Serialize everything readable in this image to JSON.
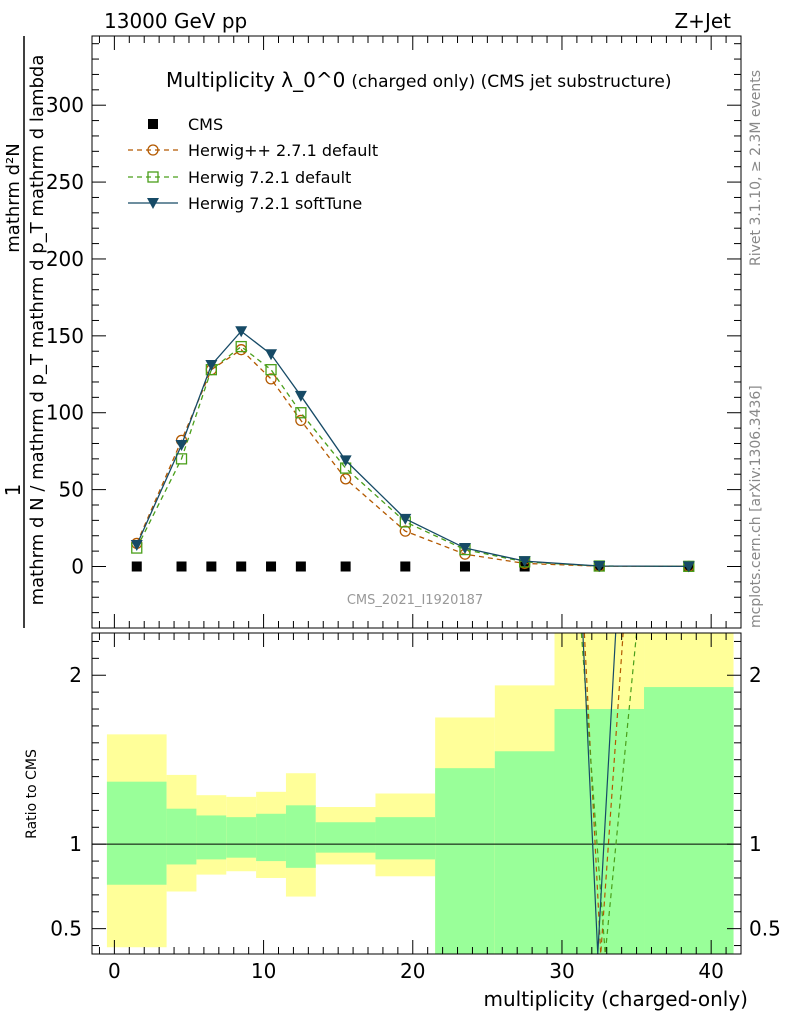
{
  "header": {
    "left": "13000 GeV pp",
    "right": "Z+Jet"
  },
  "side_labels": {
    "rivet": "Rivet 3.1.10, ≥ 2.3M events",
    "mcplots": "mcplots.cern.ch [arXiv:1306.3436]"
  },
  "chart_data": [
    {
      "type": "line",
      "title": "Multiplicity λ_0^0",
      "title_suffix": "(charged only) (CMS jet substructure)",
      "ylabel_top": "1",
      "ylabel_num": "mathrm d²N",
      "ylabel_den_main": "mathrm d N / mathrm d p_T mathrm d p_T mathrm d lambda",
      "ylabel_den_sub": "mathrm d N / mathrm d p",
      "ylabel_den": "mathrm d N / mathrm d p",
      "ylabel_den_tail": "mathrm d p",
      "ylabel_lambda": "mathrm d lambda",
      "xlim": [
        -1.5,
        42
      ],
      "ylim": [
        -40,
        345
      ],
      "x_ticks": [
        0,
        10,
        20,
        30,
        40
      ],
      "y_ticks": [
        0,
        50,
        100,
        150,
        200,
        250,
        300
      ],
      "legend_position": "top-left",
      "watermark": "CMS_2021_I1920187",
      "x": [
        1.5,
        4.5,
        6.5,
        8.5,
        10.5,
        12.5,
        15.5,
        19.5,
        23.5,
        27.5,
        32.5,
        38.5
      ],
      "series": [
        {
          "name": "CMS",
          "style": "marker-square",
          "color": "#000000",
          "values": [
            0,
            0,
            0,
            0,
            0,
            0,
            0,
            0,
            0,
            0,
            0,
            0
          ]
        },
        {
          "name": "Herwig++ 2.7.1 default",
          "style": "circle-dashed",
          "color": "#b35900",
          "values": [
            15,
            82,
            128,
            141,
            122,
            95,
            57,
            23,
            8,
            2,
            0.2,
            0.1
          ]
        },
        {
          "name": "Herwig 7.2.1 default",
          "style": "square-dashed",
          "color": "#4a9f1a",
          "values": [
            12,
            70,
            128,
            143,
            128,
            100,
            64,
            29,
            11,
            3,
            0.3,
            0.1
          ]
        },
        {
          "name": "Herwig 7.2.1 softTune",
          "style": "triangle-solid",
          "color": "#164a66",
          "values": [
            14,
            79,
            131,
            153,
            138,
            111,
            69,
            31,
            12,
            3.5,
            0.3,
            0.1
          ]
        }
      ]
    },
    {
      "type": "area",
      "ylabel": "Ratio to CMS",
      "xlabel": "multiplicity (charged-only)",
      "xlim": [
        -1.5,
        42
      ],
      "ylim": [
        0.35,
        2.25
      ],
      "x_ticks": [
        0,
        10,
        20,
        30,
        40
      ],
      "y_ticks": [
        0.5,
        1,
        2
      ],
      "bins": [
        {
          "x0": -0.5,
          "x1": 3.5,
          "y_lo": 0.39,
          "y_hi": 1.65,
          "g_lo": 0.76,
          "g_hi": 1.37
        },
        {
          "x0": 3.5,
          "x1": 5.5,
          "y_lo": 0.72,
          "y_hi": 1.41,
          "g_lo": 0.88,
          "g_hi": 1.21
        },
        {
          "x0": 5.5,
          "x1": 7.5,
          "y_lo": 0.82,
          "y_hi": 1.29,
          "g_lo": 0.91,
          "g_hi": 1.17
        },
        {
          "x0": 7.5,
          "x1": 9.5,
          "y_lo": 0.84,
          "y_hi": 1.28,
          "g_lo": 0.92,
          "g_hi": 1.16
        },
        {
          "x0": 9.5,
          "x1": 11.5,
          "y_lo": 0.8,
          "y_hi": 1.31,
          "g_lo": 0.9,
          "g_hi": 1.18
        },
        {
          "x0": 11.5,
          "x1": 13.5,
          "y_lo": 0.69,
          "y_hi": 1.42,
          "g_lo": 0.86,
          "g_hi": 1.23
        },
        {
          "x0": 13.5,
          "x1": 17.5,
          "y_lo": 0.88,
          "y_hi": 1.22,
          "g_lo": 0.95,
          "g_hi": 1.13
        },
        {
          "x0": 17.5,
          "x1": 21.5,
          "y_lo": 0.81,
          "y_hi": 1.3,
          "g_lo": 0.91,
          "g_hi": 1.16
        },
        {
          "x0": 21.5,
          "x1": 25.5,
          "y_lo": 0.35,
          "y_hi": 1.75,
          "g_lo": 0.35,
          "g_hi": 1.45
        },
        {
          "x0": 25.5,
          "x1": 29.5,
          "y_lo": 0.35,
          "y_hi": 1.94,
          "g_lo": 0.35,
          "g_hi": 1.55
        },
        {
          "x0": 29.5,
          "x1": 35.5,
          "y_lo": 0.35,
          "y_hi": 2.25,
          "g_lo": 0.35,
          "g_hi": 1.8
        },
        {
          "x0": 35.5,
          "x1": 41.5,
          "y_lo": 0.35,
          "y_hi": 2.25,
          "g_lo": 0.35,
          "g_hi": 1.93
        }
      ]
    }
  ]
}
